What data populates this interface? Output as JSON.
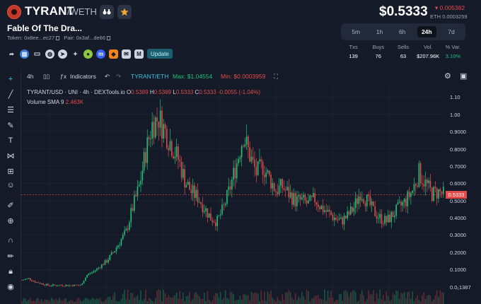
{
  "header": {
    "symbol": "TYRANT",
    "pair_suffix": "/WETH",
    "name": "Fable Of The Dra...",
    "token_addr": "Token: 0x8ee...ec27",
    "pair_addr": "Pair: 0x3af...de66",
    "update_label": "Update",
    "price": "$0.5333",
    "change": "▾ 0.005382",
    "eth_price": "ETH 0.0003259",
    "timeframes": [
      "5m",
      "1h",
      "6h",
      "24h",
      "7d"
    ],
    "active_timeframe": "24h",
    "stats": [
      {
        "k": "Txs",
        "v": "139"
      },
      {
        "k": "Buys",
        "v": "76"
      },
      {
        "k": "Sells",
        "v": "63"
      },
      {
        "k": "Vol.",
        "v": "$207.96K"
      },
      {
        "k": "% Var.",
        "v": "3.10%"
      }
    ],
    "icons": [
      "binoculars-icon",
      "star-icon"
    ],
    "social_icons": [
      "share-icon",
      "chart-icon",
      "monitor-icon",
      "globe-icon",
      "telegram-icon",
      "twitter-icon",
      "coingecko-icon",
      "cmc-icon",
      "fox-icon",
      "mail-icon",
      "medium-icon"
    ]
  },
  "toolbar": {
    "interval": "4h",
    "indicators": "Indicators",
    "pair": "TYRANT/ETH",
    "max": "Max: $1.04554",
    "min": "Min: $0.0003959"
  },
  "chart_data": {
    "type": "candlestick",
    "legend": {
      "symbol": "TYRANT/USD · UNI · 4h · DEXTools.io",
      "o": "0.5389",
      "h": "0.5389",
      "l": "0.5333",
      "c": "0.5333",
      "change": "-0.0055 (-1.04%)"
    },
    "volume_legend": {
      "label": "Volume SMA 9",
      "value": "2.463K"
    },
    "y_ticks": [
      "1.10",
      "1.00",
      "0.9000",
      "0.8000",
      "0.7000",
      "0.6000",
      "0.5000",
      "0.4000",
      "0.3000",
      "0.2000",
      "0.1000",
      "0.0₁1387"
    ],
    "current_price_label": "0.5333",
    "ylim": [
      0,
      1.1
    ],
    "close_series": [
      0.04,
      0.05,
      0.03,
      0.02,
      0.01,
      0.01,
      0.01,
      0.01,
      0.01,
      0.01,
      0.07,
      0.09,
      0.12,
      0.15,
      0.2,
      0.26,
      0.32,
      0.46,
      0.58,
      0.78,
      0.94,
      0.98,
      0.9,
      0.82,
      0.74,
      0.62,
      0.55,
      0.52,
      0.46,
      0.4,
      0.38,
      0.46,
      0.58,
      0.72,
      0.88,
      0.76,
      0.66,
      0.7,
      0.63,
      0.56,
      0.58,
      0.54,
      0.5,
      0.5,
      0.48,
      0.51,
      0.46,
      0.43,
      0.4,
      0.38,
      0.41,
      0.46,
      0.55,
      0.5,
      0.44,
      0.4,
      0.38,
      0.42,
      0.46,
      0.5,
      0.56,
      0.66,
      0.6,
      0.54,
      0.55,
      0.53
    ]
  }
}
